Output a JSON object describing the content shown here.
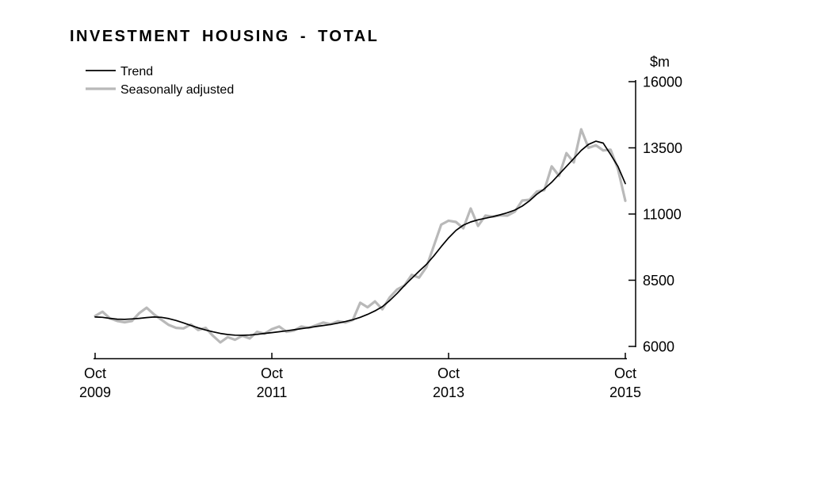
{
  "page": {
    "background": "#ffffff"
  },
  "chart_data": {
    "type": "line",
    "title": "INVESTMENT HOUSING - TOTAL",
    "unit_label": "$m",
    "frequency": "monthly",
    "x_start": "Oct 2009",
    "x_end": "Oct 2015",
    "x_range_months": [
      0,
      72
    ],
    "x_tick_months": [
      0,
      24,
      48,
      72
    ],
    "x_tick_labels": [
      [
        "Oct",
        "2009"
      ],
      [
        "Oct",
        "2011"
      ],
      [
        "Oct",
        "2013"
      ],
      [
        "Oct",
        "2015"
      ]
    ],
    "y_ticks": [
      16000,
      13500,
      11000,
      8500,
      6000
    ],
    "ylim": [
      6000,
      16000
    ],
    "grid": false,
    "legend_position": "top-left",
    "legend": [
      {
        "label": "Trend",
        "color": "#000000",
        "width": 1.7
      },
      {
        "label": "Seasonally adjusted",
        "color": "#b9b9b9",
        "width": 3.2
      }
    ],
    "series": [
      {
        "name": "Trend",
        "values": [
          7110,
          7100,
          7060,
          7030,
          7020,
          7040,
          7060,
          7090,
          7110,
          7100,
          7050,
          6980,
          6890,
          6790,
          6700,
          6620,
          6550,
          6490,
          6450,
          6425,
          6420,
          6430,
          6455,
          6490,
          6520,
          6555,
          6590,
          6630,
          6670,
          6710,
          6750,
          6790,
          6830,
          6880,
          6940,
          7010,
          7100,
          7210,
          7340,
          7500,
          7730,
          8000,
          8300,
          8570,
          8840,
          9100,
          9420,
          9770,
          10100,
          10380,
          10580,
          10700,
          10780,
          10840,
          10900,
          10970,
          11050,
          11150,
          11300,
          11500,
          11750,
          11950,
          12200,
          12500,
          12800,
          13100,
          13400,
          13630,
          13750,
          13680,
          13250,
          12800,
          12150
        ]
      },
      {
        "name": "Seasonally adjusted",
        "values": [
          7150,
          7310,
          7060,
          6960,
          6910,
          6960,
          7260,
          7460,
          7210,
          7010,
          6810,
          6700,
          6680,
          6830,
          6620,
          6700,
          6400,
          6150,
          6350,
          6250,
          6400,
          6300,
          6550,
          6480,
          6650,
          6750,
          6550,
          6600,
          6750,
          6700,
          6800,
          6900,
          6840,
          6950,
          6900,
          7000,
          7650,
          7480,
          7700,
          7400,
          7850,
          8150,
          8300,
          8700,
          8600,
          9000,
          9800,
          10600,
          10750,
          10700,
          10460,
          11210,
          10550,
          10940,
          10900,
          10950,
          10940,
          11090,
          11510,
          11540,
          11850,
          11900,
          12800,
          12440,
          13300,
          12950,
          14200,
          13500,
          13600,
          13400,
          13430,
          12700,
          11500
        ]
      }
    ]
  }
}
